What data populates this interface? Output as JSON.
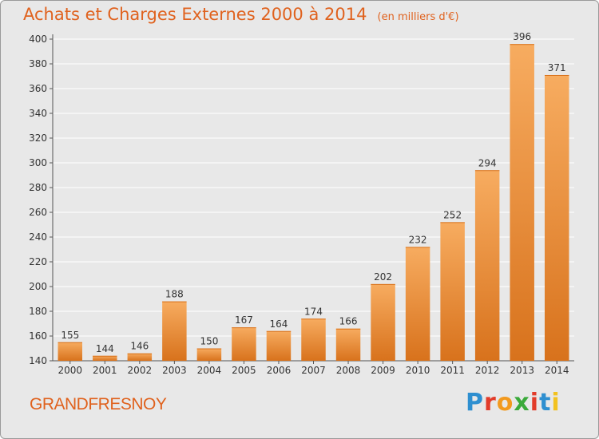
{
  "header": {
    "title": "Achats et Charges Externes 2000 à 2014",
    "unit": "(en milliers d'€)"
  },
  "footer": {
    "commune": "GRANDFRESNOY",
    "brand": "Proxiti",
    "brand_colors": [
      "#2e8fd0",
      "#e23c2a",
      "#f29a1f",
      "#3aaa3a",
      "#e23c2a",
      "#2e8fd0",
      "#f2c21f"
    ]
  },
  "colors": {
    "bar": "#f08a2c",
    "bar_light": "#f7ac60",
    "bar_dark": "#d8721c",
    "background": "#e8e8e8",
    "grid": "#ffffff",
    "title": "#e0621e"
  },
  "chart_data": {
    "type": "bar",
    "title": "Achats et Charges Externes 2000 à 2014",
    "subtitle": "(en milliers d'€)",
    "xlabel": "",
    "ylabel": "",
    "ylim": [
      140,
      400
    ],
    "yticks": [
      140,
      160,
      180,
      200,
      220,
      240,
      260,
      280,
      300,
      320,
      340,
      360,
      380,
      400
    ],
    "categories": [
      "2000",
      "2001",
      "2002",
      "2003",
      "2004",
      "2005",
      "2006",
      "2007",
      "2008",
      "2009",
      "2010",
      "2011",
      "2012",
      "2013",
      "2014"
    ],
    "values": [
      155,
      144,
      146,
      188,
      150,
      167,
      164,
      174,
      166,
      202,
      232,
      252,
      294,
      396,
      371
    ],
    "grid": true
  }
}
